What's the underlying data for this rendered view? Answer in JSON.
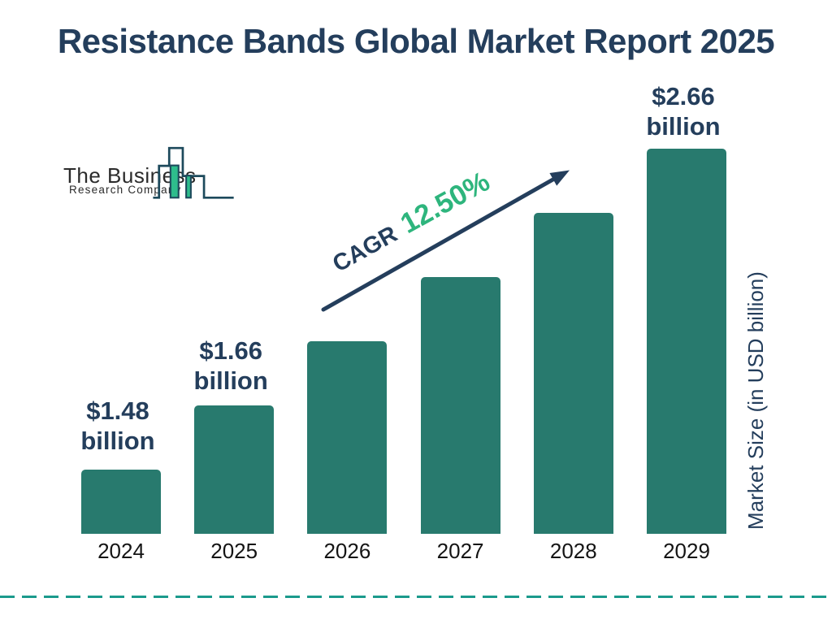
{
  "title": {
    "text": "Resistance Bands Global Market Report 2025",
    "color": "#243E5C"
  },
  "logo": {
    "line1": "The Business",
    "line2": "Research Company",
    "outline_color": "#1D4A5C",
    "accent_color": "#2EBD8C"
  },
  "cagr": {
    "label": "CAGR",
    "value": "12.50%",
    "label_color": "#243E5C",
    "value_color": "#2EB57D",
    "arrow_color": "#243E5C"
  },
  "ylabel": "Market Size (in USD billion)",
  "divider": {
    "color": "#1B9A8C"
  },
  "chart_data": {
    "type": "bar",
    "title": "Resistance Bands Global Market Report 2025",
    "categories": [
      "2024",
      "2025",
      "2026",
      "2027",
      "2028",
      "2029"
    ],
    "values": [
      1.48,
      1.66,
      null,
      null,
      null,
      2.66
    ],
    "unit": "USD billion",
    "value_labels": [
      {
        "index": 0,
        "line1": "$1.48",
        "line2": "billion"
      },
      {
        "index": 1,
        "line1": "$1.66",
        "line2": "billion"
      },
      {
        "index": 5,
        "line1": "$2.66",
        "line2": "billion"
      }
    ],
    "cagr": "12.50%",
    "xlabel": "",
    "ylabel": "Market Size (in USD billion)",
    "bar_color": "#287A6E",
    "label_color": "#243E5C",
    "year_label_color": "#141414",
    "grid": false,
    "legend": false
  }
}
